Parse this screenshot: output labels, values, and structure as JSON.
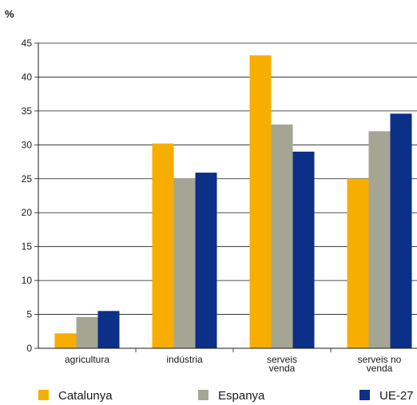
{
  "chart_data": {
    "type": "bar",
    "unit_label": "%",
    "categories": [
      [
        "agricultura"
      ],
      [
        "indústria"
      ],
      [
        "serveis",
        "venda"
      ],
      [
        "serveis no",
        "venda"
      ]
    ],
    "series": [
      {
        "name": "Catalunya",
        "color": "#f7ae00",
        "values": [
          2.2,
          30.2,
          43.2,
          25.0
        ]
      },
      {
        "name": "Espanya",
        "color": "#a5a593",
        "values": [
          4.6,
          25.1,
          33.0,
          32.0
        ]
      },
      {
        "name": "UE-27",
        "color": "#0c2f87",
        "values": [
          5.5,
          25.9,
          29.0,
          34.6
        ]
      }
    ],
    "ylim": [
      0,
      45
    ],
    "yticks": [
      0,
      5,
      10,
      15,
      20,
      25,
      30,
      35,
      40,
      45
    ],
    "grid": true,
    "legend_position": "bottom"
  }
}
